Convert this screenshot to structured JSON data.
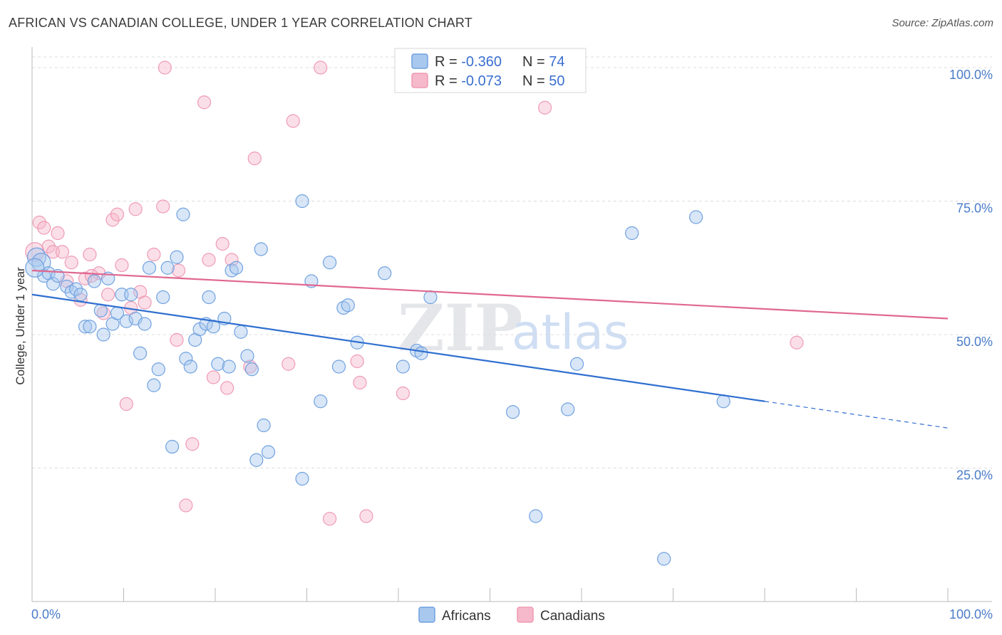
{
  "title": "AFRICAN VS CANADIAN COLLEGE, UNDER 1 YEAR CORRELATION CHART",
  "source": "Source: ZipAtlas.com",
  "watermark": {
    "zip": "ZIP",
    "atlas": "atlas"
  },
  "legend_top": [
    {
      "r_label": "R = ",
      "r_value": "-0.360",
      "n_label": "N = ",
      "n_value": "74",
      "color": "#a9c8ee"
    },
    {
      "r_label": "R = ",
      "r_value": "-0.073",
      "n_label": "N = ",
      "n_value": "50",
      "color": "#f6b8cb"
    }
  ],
  "legend_bottom": [
    {
      "label": "Africans",
      "color": "#a9c8ee"
    },
    {
      "label": "Canadians",
      "color": "#f6b8cb"
    }
  ],
  "chart_data": {
    "type": "scatter",
    "xlabel": "",
    "ylabel": "College, Under 1 year",
    "xlim": [
      0,
      100
    ],
    "ylim": [
      0,
      102
    ],
    "x_tick_labels": [
      "0.0%",
      "100.0%"
    ],
    "y_ticks": [
      25,
      50,
      75,
      100
    ],
    "y_tick_labels": [
      "25.0%",
      "50.0%",
      "75.0%",
      "100.0%"
    ],
    "grid": true,
    "series": [
      {
        "name": "Africans",
        "color": "#6fa1e0",
        "fill": "#a9c8ee",
        "line_color": "#2f6fd0",
        "trend": {
          "x0": 0,
          "y0": 57.5,
          "x1": 80,
          "y1": 37.5,
          "dash_to_x": 100,
          "dash_to_y": 32.5
        },
        "points": [
          [
            0.5,
            64.5
          ],
          [
            1.0,
            63.5
          ],
          [
            1.3,
            61.0
          ],
          [
            1.8,
            61.5
          ],
          [
            2.3,
            59.5
          ],
          [
            2.8,
            61.0
          ],
          [
            3.8,
            59.0
          ],
          [
            4.3,
            58.0
          ],
          [
            4.8,
            58.5
          ],
          [
            5.3,
            57.5
          ],
          [
            6.8,
            60.0
          ],
          [
            8.3,
            60.5
          ],
          [
            5.8,
            51.5
          ],
          [
            6.3,
            51.5
          ],
          [
            7.5,
            54.5
          ],
          [
            7.8,
            50.0
          ],
          [
            8.8,
            52.0
          ],
          [
            9.3,
            54.0
          ],
          [
            9.8,
            57.5
          ],
          [
            10.3,
            52.5
          ],
          [
            10.8,
            57.5
          ],
          [
            11.3,
            53.0
          ],
          [
            11.8,
            46.5
          ],
          [
            12.3,
            52.0
          ],
          [
            12.8,
            62.5
          ],
          [
            13.3,
            40.5
          ],
          [
            13.8,
            43.5
          ],
          [
            14.3,
            57.0
          ],
          [
            14.8,
            62.5
          ],
          [
            15.3,
            29.0
          ],
          [
            15.8,
            64.5
          ],
          [
            16.5,
            72.5
          ],
          [
            16.8,
            45.5
          ],
          [
            17.3,
            44.0
          ],
          [
            17.8,
            49.0
          ],
          [
            18.3,
            51.0
          ],
          [
            19.0,
            52.0
          ],
          [
            19.3,
            57.0
          ],
          [
            19.8,
            51.5
          ],
          [
            20.3,
            44.5
          ],
          [
            21.0,
            53.0
          ],
          [
            21.5,
            44.0
          ],
          [
            21.8,
            62.0
          ],
          [
            22.3,
            62.5
          ],
          [
            22.8,
            50.5
          ],
          [
            23.5,
            46.0
          ],
          [
            24.0,
            43.5
          ],
          [
            24.5,
            26.5
          ],
          [
            25.0,
            66.0
          ],
          [
            25.3,
            33.0
          ],
          [
            25.8,
            28.0
          ],
          [
            29.5,
            75.0
          ],
          [
            29.5,
            23.0
          ],
          [
            30.5,
            60.0
          ],
          [
            31.5,
            37.5
          ],
          [
            32.5,
            63.5
          ],
          [
            33.5,
            44.0
          ],
          [
            34.0,
            55.0
          ],
          [
            34.5,
            55.5
          ],
          [
            35.5,
            48.5
          ],
          [
            38.5,
            61.5
          ],
          [
            40.5,
            44.0
          ],
          [
            42.0,
            47.0
          ],
          [
            42.5,
            46.5
          ],
          [
            43.5,
            57.0
          ],
          [
            52.5,
            35.5
          ],
          [
            55.0,
            16.0
          ],
          [
            58.5,
            36.0
          ],
          [
            59.5,
            44.5
          ],
          [
            65.5,
            69.0
          ],
          [
            69.0,
            8.0
          ],
          [
            72.5,
            72.0
          ],
          [
            75.5,
            37.5
          ],
          [
            0.3,
            62.5
          ]
        ]
      },
      {
        "name": "Canadians",
        "color": "#ef9ab3",
        "fill": "#f6b8cb",
        "line_color": "#e06890",
        "trend": {
          "x0": 0,
          "y0": 62.0,
          "x1": 100,
          "y1": 53.0
        },
        "points": [
          [
            0.3,
            65.5
          ],
          [
            0.8,
            71.0
          ],
          [
            1.3,
            70.0
          ],
          [
            1.8,
            66.5
          ],
          [
            2.3,
            65.5
          ],
          [
            2.8,
            69.0
          ],
          [
            3.3,
            65.5
          ],
          [
            3.8,
            60.0
          ],
          [
            4.3,
            63.5
          ],
          [
            5.3,
            56.5
          ],
          [
            5.8,
            60.5
          ],
          [
            6.3,
            65.0
          ],
          [
            7.3,
            61.5
          ],
          [
            7.8,
            54.0
          ],
          [
            8.3,
            57.5
          ],
          [
            8.8,
            71.5
          ],
          [
            9.3,
            72.5
          ],
          [
            9.8,
            63.0
          ],
          [
            10.3,
            37.0
          ],
          [
            10.8,
            55.0
          ],
          [
            11.3,
            73.5
          ],
          [
            11.8,
            58.0
          ],
          [
            12.3,
            56.0
          ],
          [
            13.3,
            65.0
          ],
          [
            14.3,
            74.0
          ],
          [
            15.8,
            49.0
          ],
          [
            16.8,
            18.0
          ],
          [
            17.5,
            29.5
          ],
          [
            18.8,
            93.5
          ],
          [
            19.3,
            64.0
          ],
          [
            19.8,
            42.0
          ],
          [
            20.8,
            67.0
          ],
          [
            21.3,
            40.0
          ],
          [
            21.8,
            64.0
          ],
          [
            23.8,
            44.0
          ],
          [
            24.3,
            83.0
          ],
          [
            14.5,
            100.0
          ],
          [
            28.0,
            44.5
          ],
          [
            28.5,
            90.0
          ],
          [
            31.5,
            100.0
          ],
          [
            32.5,
            15.5
          ],
          [
            35.5,
            45.0
          ],
          [
            35.8,
            41.0
          ],
          [
            36.5,
            16.0
          ],
          [
            40.5,
            39.0
          ],
          [
            45.5,
            100.0
          ],
          [
            56.0,
            92.5
          ],
          [
            83.5,
            48.5
          ],
          [
            6.5,
            61.0
          ],
          [
            16.0,
            62.0
          ]
        ]
      }
    ]
  }
}
